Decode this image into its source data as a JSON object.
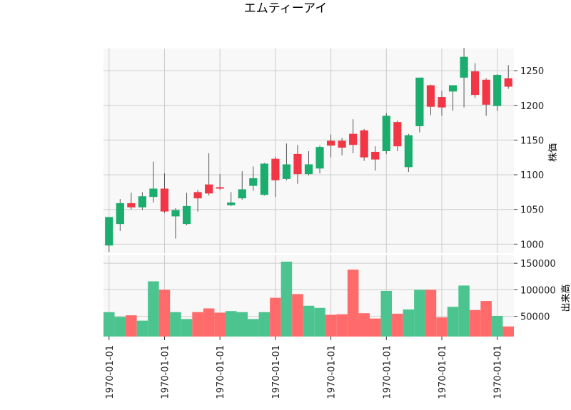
{
  "chart_data": {
    "type": "candlestick",
    "title": "エムティーアイ",
    "price_panel": {
      "ylabel": "株価",
      "ylim": [
        987,
        1282
      ],
      "yticks": [
        1000,
        1050,
        1100,
        1150,
        1200,
        1250
      ],
      "grid": true,
      "background": "#f8f8f8"
    },
    "volume_panel": {
      "ylabel": "出来高",
      "ylim": [
        12000,
        165000
      ],
      "yticks": [
        50000,
        100000,
        150000
      ],
      "ytick_labels": [
        "50000",
        "100000",
        "150000"
      ],
      "grid": true
    },
    "xtick_labels": [
      "1970-01-01",
      "1970-01-01",
      "1970-01-01",
      "1970-01-01",
      "1970-01-01",
      "1970-01-01",
      "1970-01-01",
      "1970-01-01"
    ],
    "xtick_indices": [
      0,
      5,
      10,
      15,
      20,
      25,
      30,
      35
    ],
    "colors": {
      "up": "#1aad6e",
      "down": "#f23645",
      "wick": "#555555",
      "volume_up": "#4cc48f",
      "volume_down": "#ff6b6b"
    },
    "candles": [
      {
        "open": 998,
        "high": 1039,
        "low": 989,
        "close": 1039,
        "volume": 58000
      },
      {
        "open": 1029,
        "high": 1065,
        "low": 1019,
        "close": 1059,
        "volume": 49000
      },
      {
        "open": 1059,
        "high": 1074,
        "low": 1050,
        "close": 1053,
        "volume": 52000
      },
      {
        "open": 1053,
        "high": 1075,
        "low": 1049,
        "close": 1069,
        "volume": 42000
      },
      {
        "open": 1068,
        "high": 1119,
        "low": 1060,
        "close": 1080,
        "volume": 116000
      },
      {
        "open": 1080,
        "high": 1102,
        "low": 1045,
        "close": 1047,
        "volume": 100000
      },
      {
        "open": 1040,
        "high": 1052,
        "low": 1008,
        "close": 1049,
        "volume": 58000
      },
      {
        "open": 1029,
        "high": 1074,
        "low": 1027,
        "close": 1055,
        "volume": 45000
      },
      {
        "open": 1075,
        "high": 1078,
        "low": 1047,
        "close": 1066,
        "volume": 58000
      },
      {
        "open": 1086,
        "high": 1131,
        "low": 1070,
        "close": 1073,
        "volume": 65000
      },
      {
        "open": 1082,
        "high": 1101,
        "low": 1078,
        "close": 1080,
        "volume": 57000
      },
      {
        "open": 1056,
        "high": 1075,
        "low": 1055,
        "close": 1060,
        "volume": 60000
      },
      {
        "open": 1066,
        "high": 1105,
        "low": 1064,
        "close": 1079,
        "volume": 58000
      },
      {
        "open": 1084,
        "high": 1112,
        "low": 1077,
        "close": 1095,
        "volume": 45000
      },
      {
        "open": 1071,
        "high": 1117,
        "low": 1070,
        "close": 1116,
        "volume": 58000
      },
      {
        "open": 1123,
        "high": 1126,
        "low": 1068,
        "close": 1092,
        "volume": 85000
      },
      {
        "open": 1094,
        "high": 1145,
        "low": 1092,
        "close": 1115,
        "volume": 153000
      },
      {
        "open": 1130,
        "high": 1143,
        "low": 1087,
        "close": 1101,
        "volume": 92000
      },
      {
        "open": 1101,
        "high": 1134,
        "low": 1099,
        "close": 1115,
        "volume": 70000
      },
      {
        "open": 1109,
        "high": 1142,
        "low": 1102,
        "close": 1140,
        "volume": 66000
      },
      {
        "open": 1149,
        "high": 1158,
        "low": 1125,
        "close": 1142,
        "volume": 53000
      },
      {
        "open": 1149,
        "high": 1153,
        "low": 1128,
        "close": 1139,
        "volume": 54000
      },
      {
        "open": 1159,
        "high": 1180,
        "low": 1131,
        "close": 1143,
        "volume": 138000
      },
      {
        "open": 1164,
        "high": 1166,
        "low": 1120,
        "close": 1125,
        "volume": 56000
      },
      {
        "open": 1133,
        "high": 1141,
        "low": 1106,
        "close": 1122,
        "volume": 46000
      },
      {
        "open": 1134,
        "high": 1189,
        "low": 1130,
        "close": 1185,
        "volume": 98000
      },
      {
        "open": 1176,
        "high": 1178,
        "low": 1134,
        "close": 1141,
        "volume": 55000
      },
      {
        "open": 1111,
        "high": 1159,
        "low": 1104,
        "close": 1157,
        "volume": 63000
      },
      {
        "open": 1170,
        "high": 1240,
        "low": 1161,
        "close": 1240,
        "volume": 100000
      },
      {
        "open": 1229,
        "high": 1230,
        "low": 1186,
        "close": 1198,
        "volume": 100000
      },
      {
        "open": 1212,
        "high": 1221,
        "low": 1185,
        "close": 1197,
        "volume": 48000
      },
      {
        "open": 1220,
        "high": 1229,
        "low": 1192,
        "close": 1229,
        "volume": 68000
      },
      {
        "open": 1240,
        "high": 1283,
        "low": 1197,
        "close": 1270,
        "volume": 108000
      },
      {
        "open": 1249,
        "high": 1261,
        "low": 1211,
        "close": 1215,
        "volume": 62000
      },
      {
        "open": 1237,
        "high": 1239,
        "low": 1185,
        "close": 1201,
        "volume": 79000
      },
      {
        "open": 1199,
        "high": 1245,
        "low": 1192,
        "close": 1244,
        "volume": 51000
      },
      {
        "open": 1239,
        "high": 1258,
        "low": 1224,
        "close": 1227,
        "volume": 31000
      }
    ]
  }
}
